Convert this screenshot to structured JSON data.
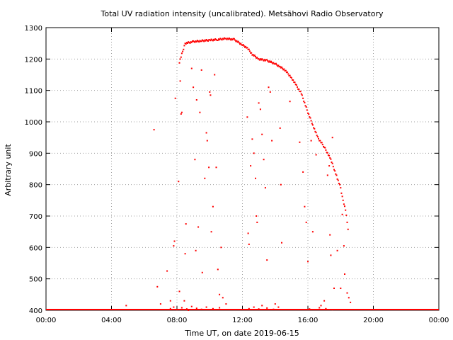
{
  "chart_data": {
    "type": "scatter",
    "title": "Total UV radiation intensity (uncalibrated). Metsähovi Radio Observatory",
    "xlabel": "Time UT, on date 2019-06-15",
    "ylabel": "Arbitrary unit",
    "x_unit": "hours UT",
    "xlim": [
      0,
      24
    ],
    "ylim": [
      400,
      1300
    ],
    "x_tick_labels": [
      "00:00",
      "04:00",
      "08:00",
      "12:00",
      "16:00",
      "20:00",
      "00:00"
    ],
    "y_tick_labels": [
      "400",
      "500",
      "600",
      "700",
      "800",
      "900",
      "1000",
      "1100",
      "1200",
      "1300"
    ],
    "grid": true,
    "marker_color": "#ff0000",
    "baseline": {
      "y": 400,
      "x_range": [
        0,
        24
      ]
    },
    "clear_sky_envelope": [
      [
        8.15,
        1190
      ],
      [
        8.5,
        1250
      ],
      [
        9.0,
        1255
      ],
      [
        9.5,
        1258
      ],
      [
        10.0,
        1260
      ],
      [
        10.5,
        1262
      ],
      [
        11.0,
        1265
      ],
      [
        11.5,
        1262
      ],
      [
        12.0,
        1245
      ],
      [
        12.3,
        1235
      ],
      [
        12.6,
        1215
      ],
      [
        13.0,
        1200
      ],
      [
        13.5,
        1195
      ],
      [
        14.0,
        1185
      ],
      [
        14.3,
        1175
      ],
      [
        14.6,
        1165
      ],
      [
        15.0,
        1140
      ],
      [
        15.3,
        1115
      ],
      [
        15.6,
        1090
      ],
      [
        15.8,
        1060
      ],
      [
        16.0,
        1030
      ],
      [
        16.3,
        990
      ],
      [
        16.6,
        950
      ],
      [
        17.0,
        920
      ],
      [
        17.4,
        880
      ],
      [
        17.8,
        820
      ],
      [
        18.0,
        790
      ],
      [
        18.1,
        760
      ],
      [
        18.3,
        720
      ],
      [
        18.5,
        640
      ]
    ],
    "scattered_points": [
      [
        4.9,
        415
      ],
      [
        6.6,
        975
      ],
      [
        6.8,
        475
      ],
      [
        7.0,
        420
      ],
      [
        7.4,
        525
      ],
      [
        7.6,
        430
      ],
      [
        7.8,
        605
      ],
      [
        7.85,
        620
      ],
      [
        7.9,
        1075
      ],
      [
        8.1,
        810
      ],
      [
        8.15,
        460
      ],
      [
        8.2,
        1130
      ],
      [
        8.25,
        1025
      ],
      [
        8.3,
        1030
      ],
      [
        8.45,
        430
      ],
      [
        8.5,
        580
      ],
      [
        8.55,
        675
      ],
      [
        8.7,
        400
      ],
      [
        8.9,
        1170
      ],
      [
        9.0,
        1110
      ],
      [
        9.1,
        880
      ],
      [
        9.15,
        590
      ],
      [
        9.2,
        1070
      ],
      [
        9.3,
        665
      ],
      [
        9.4,
        1030
      ],
      [
        9.5,
        1165
      ],
      [
        9.55,
        520
      ],
      [
        9.7,
        820
      ],
      [
        9.8,
        965
      ],
      [
        9.85,
        940
      ],
      [
        9.95,
        855
      ],
      [
        10.0,
        1095
      ],
      [
        10.05,
        1085
      ],
      [
        10.1,
        650
      ],
      [
        10.2,
        730
      ],
      [
        10.3,
        1150
      ],
      [
        10.4,
        855
      ],
      [
        10.5,
        530
      ],
      [
        10.6,
        450
      ],
      [
        10.7,
        600
      ],
      [
        10.8,
        440
      ],
      [
        11.0,
        420
      ],
      [
        12.3,
        1015
      ],
      [
        12.35,
        645
      ],
      [
        12.4,
        610
      ],
      [
        12.5,
        860
      ],
      [
        12.6,
        945
      ],
      [
        12.7,
        900
      ],
      [
        12.8,
        820
      ],
      [
        12.85,
        700
      ],
      [
        12.9,
        680
      ],
      [
        13.0,
        1060
      ],
      [
        13.1,
        1040
      ],
      [
        13.2,
        960
      ],
      [
        13.3,
        880
      ],
      [
        13.4,
        790
      ],
      [
        13.5,
        560
      ],
      [
        13.6,
        1110
      ],
      [
        13.7,
        1095
      ],
      [
        13.8,
        940
      ],
      [
        14.0,
        420
      ],
      [
        14.3,
        980
      ],
      [
        14.35,
        800
      ],
      [
        14.4,
        615
      ],
      [
        14.9,
        1065
      ],
      [
        15.5,
        935
      ],
      [
        15.7,
        840
      ],
      [
        15.8,
        730
      ],
      [
        15.9,
        680
      ],
      [
        16.0,
        555
      ],
      [
        16.2,
        940
      ],
      [
        16.3,
        650
      ],
      [
        16.5,
        895
      ],
      [
        16.8,
        415
      ],
      [
        17.0,
        430
      ],
      [
        17.2,
        830
      ],
      [
        17.3,
        860
      ],
      [
        17.35,
        640
      ],
      [
        17.4,
        575
      ],
      [
        17.5,
        950
      ],
      [
        17.6,
        470
      ],
      [
        17.8,
        590
      ],
      [
        18.0,
        470
      ],
      [
        18.1,
        705
      ],
      [
        18.2,
        605
      ],
      [
        18.25,
        515
      ],
      [
        18.4,
        455
      ],
      [
        18.5,
        440
      ],
      [
        18.6,
        425
      ]
    ],
    "low_cluster": [
      [
        7.6,
        405
      ],
      [
        7.8,
        410
      ],
      [
        8.0,
        402
      ],
      [
        8.3,
        408
      ],
      [
        8.6,
        404
      ],
      [
        8.9,
        412
      ],
      [
        9.2,
        406
      ],
      [
        9.5,
        403
      ],
      [
        9.8,
        410
      ],
      [
        10.2,
        405
      ],
      [
        10.6,
        408
      ],
      [
        12.4,
        405
      ],
      [
        12.7,
        410
      ],
      [
        13.0,
        404
      ],
      [
        13.2,
        415
      ],
      [
        13.5,
        407
      ],
      [
        13.9,
        403
      ],
      [
        14.2,
        410
      ],
      [
        16.1,
        404
      ],
      [
        16.7,
        408
      ],
      [
        17.1,
        405
      ],
      [
        17.5,
        402
      ]
    ]
  }
}
